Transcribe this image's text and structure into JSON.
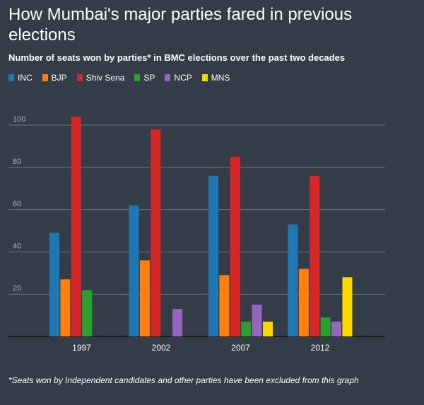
{
  "title": "How Mumbai's major parties fared in previous elections",
  "subtitle": "Number of seats won by parties* in BMC elections over the past two decades",
  "footnote": "*Seats won by Independent candidates and other parties have been excluded from this graph",
  "chart_data": {
    "type": "bar",
    "categories": [
      "1997",
      "2002",
      "2007",
      "2012"
    ],
    "series": [
      {
        "name": "INC",
        "color": "#1f77b4",
        "values": [
          49,
          62,
          76,
          53
        ]
      },
      {
        "name": "BJP",
        "color": "#ff7f0e",
        "values": [
          27,
          36,
          29,
          32
        ]
      },
      {
        "name": "Shiv Sena",
        "color": "#d62728",
        "values": [
          104,
          98,
          85,
          76
        ]
      },
      {
        "name": "SP",
        "color": "#2ca02c",
        "values": [
          22,
          0,
          7,
          9
        ]
      },
      {
        "name": "NCP",
        "color": "#9467bd",
        "values": [
          0,
          13,
          15,
          7
        ]
      },
      {
        "name": "MNS",
        "color": "#ffd700",
        "values": [
          0,
          0,
          7,
          28
        ]
      }
    ],
    "yticks": [
      "20",
      "40",
      "60",
      "80",
      "100"
    ],
    "ylim": [
      0,
      100
    ],
    "grid": true,
    "legend_position": "top-left"
  }
}
